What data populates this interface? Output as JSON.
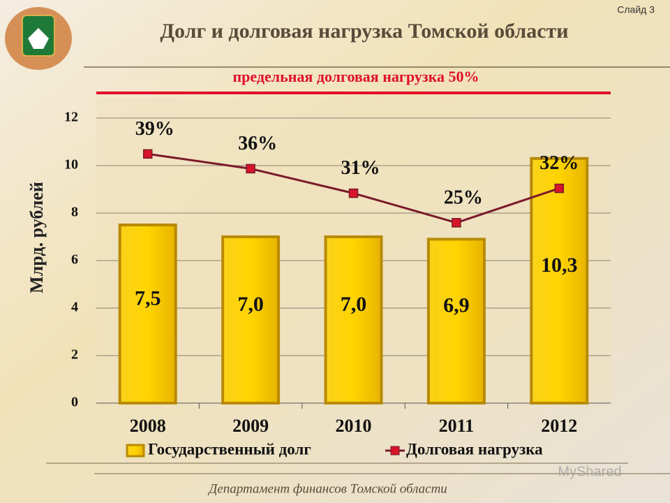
{
  "slide_label": "Слайд 3",
  "title": "Долг и долговая нагрузка Томской области",
  "subtitle": "предельная долговая нагрузка 50%",
  "footer": "Департамент финансов Томской области",
  "watermark": "MyShared",
  "chart_data": {
    "type": "bar",
    "y_label": "Млрд. рублей",
    "categories": [
      "2008",
      "2009",
      "2010",
      "2011",
      "2012"
    ],
    "ylim": [
      0,
      12
    ],
    "yticks": [
      0,
      2,
      4,
      6,
      8,
      10,
      12
    ],
    "y2lim": [
      -11.7,
      46.3
    ],
    "grid": true,
    "legend": "bottom",
    "series": [
      {
        "name": "Государственный долг",
        "type": "bar",
        "color": "#f5c000",
        "values": [
          7.5,
          7.0,
          7.0,
          6.9,
          10.3
        ],
        "value_labels": [
          "7,5",
          "7,0",
          "7,0",
          "6,9",
          "10,3"
        ]
      },
      {
        "name": "Долговая нагрузка",
        "type": "line",
        "axis": "y2",
        "color": "#7a1a2a",
        "values": [
          39,
          36,
          31,
          25,
          32
        ],
        "value_labels": [
          "39%",
          "36%",
          "31%",
          "25%",
          "32%"
        ]
      }
    ]
  }
}
